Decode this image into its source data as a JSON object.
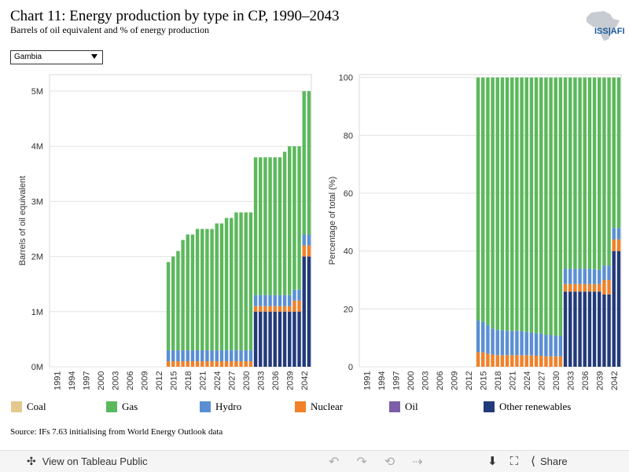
{
  "header": {
    "title": "Chart 11: Energy production by type in CP, 1990–2043",
    "subtitle": "Barrels of oil equivalent and % of energy production",
    "logo_text": "ISS|AFI"
  },
  "filter": {
    "selected": "Gambia"
  },
  "source": "Source: IFs 7.63 initialising from World Energy Outlook data",
  "footer": {
    "view_label": "View on Tableau Public",
    "share_label": "Share"
  },
  "colors": {
    "Coal": "#e3c98f",
    "Gas": "#5cb85c",
    "Hydro": "#5b8fd4",
    "Nuclear": "#f0812a",
    "Oil": "#7b5ea7",
    "Other renewables": "#233a7a"
  },
  "legend": [
    "Coal",
    "Gas",
    "Hydro",
    "Nuclear",
    "Oil",
    "Other renewables"
  ],
  "chart_data": [
    {
      "type": "bar",
      "stacked": true,
      "ylabel": "Barrels of oil equivalent",
      "ylim": [
        0,
        5300000
      ],
      "yticks": [
        0,
        1000000,
        2000000,
        3000000,
        4000000,
        5000000
      ],
      "ytick_labels": [
        "0M",
        "1M",
        "2M",
        "3M",
        "4M",
        "5M"
      ],
      "x_start": 1990,
      "x_end": 2043,
      "xtick_labels": [
        "1991",
        "1994",
        "1997",
        "2000",
        "2003",
        "2006",
        "2009",
        "2012",
        "2015",
        "2018",
        "2021",
        "2024",
        "2027",
        "2030",
        "2033",
        "2036",
        "2039",
        "2042"
      ],
      "series": [
        {
          "name": "Other renewables",
          "values": {
            "2032": 1000000,
            "2033": 1000000,
            "2034": 1000000,
            "2035": 1000000,
            "2036": 1000000,
            "2037": 1000000,
            "2038": 1000000,
            "2039": 1000000,
            "2040": 1000000,
            "2041": 1000000,
            "2042": 2000000,
            "2043": 2000000
          }
        },
        {
          "name": "Nuclear",
          "values": {
            "2014": 100000,
            "2015": 100000,
            "2016": 100000,
            "2017": 100000,
            "2018": 100000,
            "2019": 100000,
            "2020": 100000,
            "2021": 100000,
            "2022": 100000,
            "2023": 100000,
            "2024": 100000,
            "2025": 100000,
            "2026": 100000,
            "2027": 100000,
            "2028": 100000,
            "2029": 100000,
            "2030": 100000,
            "2031": 100000,
            "2032": 100000,
            "2033": 100000,
            "2034": 100000,
            "2035": 100000,
            "2036": 100000,
            "2037": 100000,
            "2038": 100000,
            "2039": 100000,
            "2040": 200000,
            "2041": 200000,
            "2042": 200000,
            "2043": 200000
          }
        },
        {
          "name": "Hydro",
          "values": {
            "2014": 200000,
            "2015": 200000,
            "2016": 200000,
            "2017": 200000,
            "2018": 200000,
            "2019": 200000,
            "2020": 200000,
            "2021": 200000,
            "2022": 200000,
            "2023": 200000,
            "2024": 200000,
            "2025": 200000,
            "2026": 200000,
            "2027": 200000,
            "2028": 200000,
            "2029": 200000,
            "2030": 200000,
            "2031": 200000,
            "2032": 200000,
            "2033": 200000,
            "2034": 200000,
            "2035": 200000,
            "2036": 200000,
            "2037": 200000,
            "2038": 200000,
            "2039": 200000,
            "2040": 200000,
            "2041": 200000,
            "2042": 200000,
            "2043": 200000
          }
        },
        {
          "name": "Gas",
          "values": {
            "2014": 1600000,
            "2015": 1700000,
            "2016": 1800000,
            "2017": 2000000,
            "2018": 2100000,
            "2019": 2100000,
            "2020": 2200000,
            "2021": 2200000,
            "2022": 2200000,
            "2023": 2200000,
            "2024": 2300000,
            "2025": 2300000,
            "2026": 2400000,
            "2027": 2400000,
            "2028": 2500000,
            "2029": 2500000,
            "2030": 2500000,
            "2031": 2500000,
            "2032": 2500000,
            "2033": 2500000,
            "2034": 2500000,
            "2035": 2500000,
            "2036": 2500000,
            "2037": 2500000,
            "2038": 2600000,
            "2039": 2700000,
            "2040": 2600000,
            "2041": 2600000,
            "2042": 2600000,
            "2043": 2600000
          }
        }
      ]
    },
    {
      "type": "bar",
      "stacked": true,
      "ylabel": "Percentage of total (%)",
      "ylim": [
        0,
        101
      ],
      "yticks": [
        0,
        20,
        40,
        60,
        80,
        100
      ],
      "ytick_labels": [
        "0",
        "20",
        "40",
        "60",
        "80",
        "100"
      ],
      "x_start": 1990,
      "x_end": 2043,
      "xtick_labels": [
        "1991",
        "1994",
        "1997",
        "2000",
        "2003",
        "2006",
        "2009",
        "2012",
        "2015",
        "2018",
        "2021",
        "2024",
        "2027",
        "2030",
        "2033",
        "2036",
        "2039",
        "2042"
      ],
      "series": [
        {
          "name": "Other renewables",
          "values": {
            "2032": 26,
            "2033": 26,
            "2034": 26,
            "2035": 26,
            "2036": 26,
            "2037": 26,
            "2038": 26,
            "2039": 26,
            "2040": 25,
            "2041": 25,
            "2042": 40,
            "2043": 40
          }
        },
        {
          "name": "Nuclear",
          "values": {
            "2014": 5,
            "2015": 5,
            "2016": 4.5,
            "2017": 4.2,
            "2018": 4,
            "2019": 4,
            "2020": 4,
            "2021": 4,
            "2022": 4,
            "2023": 4,
            "2024": 4,
            "2025": 4,
            "2026": 3.8,
            "2027": 3.8,
            "2028": 3.6,
            "2029": 3.6,
            "2030": 3.6,
            "2031": 3.6,
            "2032": 2.6,
            "2033": 2.6,
            "2034": 2.6,
            "2035": 2.6,
            "2036": 2.6,
            "2037": 2.6,
            "2038": 2.6,
            "2039": 2.6,
            "2040": 5,
            "2041": 5,
            "2042": 4,
            "2043": 4
          }
        },
        {
          "name": "Hydro",
          "values": {
            "2014": 11,
            "2015": 10.5,
            "2016": 10,
            "2017": 9,
            "2018": 8.7,
            "2019": 8.7,
            "2020": 8.4,
            "2021": 8.4,
            "2022": 8.4,
            "2023": 8.4,
            "2024": 8,
            "2025": 8,
            "2026": 7.7,
            "2027": 7.7,
            "2028": 7.4,
            "2029": 7.4,
            "2030": 7.1,
            "2031": 7.1,
            "2032": 5.3,
            "2033": 5.3,
            "2034": 5.3,
            "2035": 5.3,
            "2036": 5.3,
            "2037": 5.3,
            "2038": 5.1,
            "2039": 4.9,
            "2040": 5,
            "2041": 5,
            "2042": 4,
            "2043": 4
          }
        },
        {
          "name": "Gas",
          "values": {
            "2014": 84,
            "2015": 84.5,
            "2016": 85.5,
            "2017": 86.8,
            "2018": 87.3,
            "2019": 87.3,
            "2020": 87.6,
            "2021": 87.6,
            "2022": 87.6,
            "2023": 87.6,
            "2024": 88,
            "2025": 88,
            "2026": 88.5,
            "2027": 88.5,
            "2028": 89,
            "2029": 89,
            "2030": 89.3,
            "2031": 89.3,
            "2032": 66.1,
            "2033": 66.1,
            "2034": 66.1,
            "2035": 66.1,
            "2036": 66.1,
            "2037": 66.1,
            "2038": 66.3,
            "2039": 66.5,
            "2040": 65,
            "2041": 65,
            "2042": 52,
            "2043": 52
          }
        }
      ]
    }
  ]
}
